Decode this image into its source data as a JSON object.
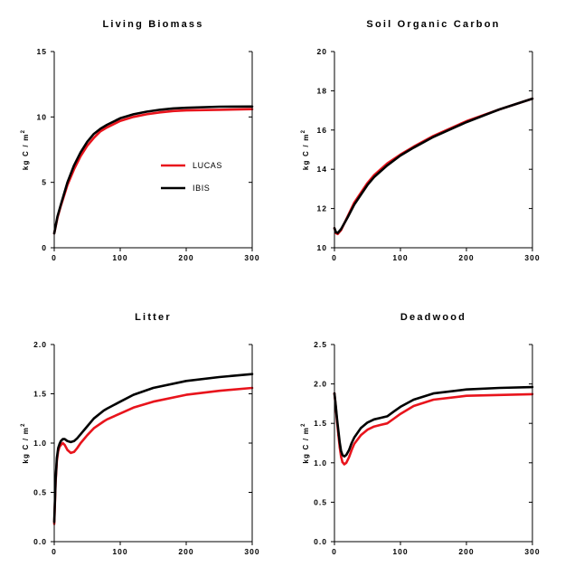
{
  "figure": {
    "units_label": "kg C / m",
    "units_power": "2"
  },
  "legend": [
    {
      "name": "LUCAS",
      "color": "#e8141c"
    },
    {
      "name": "IBIS",
      "color": "#000000"
    }
  ],
  "chart_data": [
    {
      "type": "line",
      "title": "Living Biomass",
      "xlabel": "",
      "ylabel": "kg C / m2",
      "xlim": [
        0,
        300
      ],
      "ylim": [
        0,
        15
      ],
      "xticks": [
        "0",
        "100",
        "200",
        "300"
      ],
      "yticks": [
        "0",
        "5",
        "10",
        "15"
      ],
      "series": [
        {
          "name": "LUCAS",
          "color": "#e8141c",
          "x": [
            0,
            5,
            10,
            20,
            30,
            40,
            50,
            60,
            70,
            80,
            100,
            120,
            140,
            160,
            180,
            200,
            250,
            300
          ],
          "y": [
            1.1,
            2.3,
            3.2,
            4.8,
            6.0,
            7.0,
            7.8,
            8.4,
            8.9,
            9.2,
            9.7,
            10.0,
            10.2,
            10.35,
            10.45,
            10.5,
            10.55,
            10.6
          ]
        },
        {
          "name": "IBIS",
          "color": "#000000",
          "x": [
            0,
            5,
            10,
            20,
            30,
            40,
            50,
            60,
            70,
            80,
            100,
            120,
            140,
            160,
            180,
            200,
            250,
            300
          ],
          "y": [
            1.1,
            2.4,
            3.3,
            5.0,
            6.3,
            7.3,
            8.1,
            8.7,
            9.1,
            9.4,
            9.9,
            10.2,
            10.4,
            10.55,
            10.65,
            10.7,
            10.78,
            10.8
          ]
        }
      ]
    },
    {
      "type": "line",
      "title": "Soil Organic Carbon",
      "xlabel": "",
      "ylabel": "kg C / m2",
      "xlim": [
        0,
        300
      ],
      "ylim": [
        10,
        20
      ],
      "xticks": [
        "0",
        "100",
        "200",
        "300"
      ],
      "yticks": [
        "10",
        "12",
        "14",
        "16",
        "18",
        "20"
      ],
      "series": [
        {
          "name": "LUCAS",
          "color": "#e8141c",
          "x": [
            0,
            2,
            5,
            10,
            20,
            30,
            40,
            50,
            60,
            80,
            100,
            120,
            150,
            200,
            250,
            300
          ],
          "y": [
            11.0,
            10.75,
            10.7,
            10.9,
            11.6,
            12.3,
            12.8,
            13.3,
            13.7,
            14.3,
            14.75,
            15.15,
            15.7,
            16.45,
            17.05,
            17.6
          ]
        },
        {
          "name": "IBIS",
          "color": "#000000",
          "x": [
            0,
            2,
            5,
            10,
            20,
            30,
            40,
            50,
            60,
            80,
            100,
            120,
            150,
            200,
            250,
            300
          ],
          "y": [
            11.0,
            10.8,
            10.75,
            10.95,
            11.55,
            12.2,
            12.7,
            13.2,
            13.6,
            14.2,
            14.7,
            15.1,
            15.65,
            16.4,
            17.05,
            17.6
          ]
        }
      ]
    },
    {
      "type": "line",
      "title": "Litter",
      "xlabel": "",
      "ylabel": "kg C / m2",
      "xlim": [
        0,
        300
      ],
      "ylim": [
        0,
        2.0
      ],
      "xticks": [
        "0",
        "100",
        "200",
        "300"
      ],
      "yticks": [
        "0.0",
        "0.5",
        "1.0",
        "1.5",
        "2.0"
      ],
      "series": [
        {
          "name": "LUCAS",
          "color": "#e8141c",
          "x": [
            0,
            2,
            4,
            6,
            8,
            10,
            13,
            16,
            20,
            25,
            30,
            35,
            40,
            50,
            60,
            75,
            80,
            100,
            120,
            150,
            200,
            250,
            300
          ],
          "y": [
            0.18,
            0.6,
            0.82,
            0.92,
            0.96,
            0.98,
            1.0,
            0.98,
            0.93,
            0.9,
            0.91,
            0.95,
            1.0,
            1.08,
            1.15,
            1.22,
            1.24,
            1.3,
            1.36,
            1.42,
            1.49,
            1.53,
            1.56
          ]
        },
        {
          "name": "IBIS",
          "color": "#000000",
          "x": [
            0,
            2,
            4,
            6,
            8,
            10,
            13,
            16,
            20,
            25,
            30,
            35,
            40,
            50,
            60,
            75,
            80,
            100,
            120,
            150,
            200,
            250,
            300
          ],
          "y": [
            0.2,
            0.62,
            0.85,
            0.95,
            0.99,
            1.02,
            1.04,
            1.04,
            1.02,
            1.01,
            1.02,
            1.05,
            1.09,
            1.17,
            1.25,
            1.33,
            1.35,
            1.42,
            1.49,
            1.56,
            1.63,
            1.67,
            1.7
          ]
        }
      ]
    },
    {
      "type": "line",
      "title": "Deadwood",
      "xlabel": "",
      "ylabel": "kg C / m2",
      "xlim": [
        0,
        300
      ],
      "ylim": [
        0,
        2.5
      ],
      "xticks": [
        "0",
        "100",
        "200",
        "300"
      ],
      "yticks": [
        "0.0",
        "0.5",
        "1.0",
        "1.5",
        "2.0",
        "2.5"
      ],
      "series": [
        {
          "name": "LUCAS",
          "color": "#e8141c",
          "x": [
            0,
            2,
            4,
            6,
            8,
            10,
            12,
            15,
            18,
            22,
            26,
            30,
            40,
            50,
            60,
            70,
            80,
            90,
            100,
            120,
            150,
            200,
            250,
            300
          ],
          "y": [
            1.88,
            1.7,
            1.52,
            1.35,
            1.2,
            1.08,
            1.01,
            0.98,
            1.0,
            1.07,
            1.16,
            1.24,
            1.35,
            1.42,
            1.46,
            1.48,
            1.5,
            1.56,
            1.62,
            1.72,
            1.8,
            1.85,
            1.86,
            1.87
          ]
        },
        {
          "name": "IBIS",
          "color": "#000000",
          "x": [
            0,
            2,
            4,
            6,
            8,
            10,
            12,
            15,
            18,
            22,
            26,
            30,
            40,
            50,
            60,
            70,
            80,
            90,
            100,
            120,
            150,
            200,
            250,
            300
          ],
          "y": [
            1.88,
            1.72,
            1.55,
            1.4,
            1.26,
            1.15,
            1.1,
            1.08,
            1.1,
            1.16,
            1.25,
            1.32,
            1.44,
            1.51,
            1.55,
            1.57,
            1.59,
            1.65,
            1.71,
            1.8,
            1.88,
            1.93,
            1.95,
            1.96
          ]
        }
      ]
    }
  ]
}
